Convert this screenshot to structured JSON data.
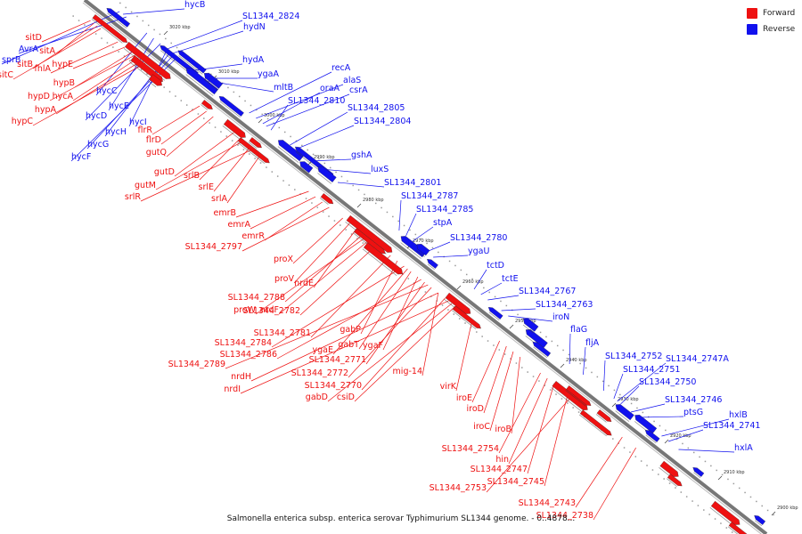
{
  "colors": {
    "forward": "#ee1111",
    "reverse": "#1111ee",
    "backbone": "#777777"
  },
  "legend": [
    {
      "label": "Forward",
      "color": "#ee1111"
    },
    {
      "label": "Reverse",
      "color": "#1111ee"
    }
  ],
  "caption": "Salmonella enterica subsp. enterica serovar Typhimurium SL1344 genome. - 0..4878...",
  "axis": {
    "unit": "kbp",
    "ticks": [
      "3020 kbp",
      "3010 kbp",
      "3000 kbp",
      "2990 kbp",
      "2980 kbp",
      "2970 kbp",
      "2960 kbp",
      "2950 kbp",
      "2940 kbp",
      "2930 kbp",
      "2920 kbp",
      "2910 kbp",
      "2900 kbp"
    ]
  },
  "genes": {
    "reverse": [
      "hycB",
      "SL1344_2824",
      "hydN",
      "hydA",
      "ygaA",
      "mltB",
      "recA",
      "alaS",
      "oraA",
      "csrA",
      "SL1344_2810",
      "SL1344_2805",
      "SL1344_2804",
      "gshA",
      "luxS",
      "SL1344_2801",
      "SL1344_2787",
      "SL1344_2785",
      "stpA",
      "SL1344_2780",
      "ygaU",
      "tctD",
      "tctE",
      "SL1344_2767",
      "SL1344_2763",
      "iroN",
      "flaG",
      "fljA",
      "SL1344_2752",
      "SL1344_2747A",
      "SL1344_2751",
      "SL1344_2750",
      "SL1344_2746",
      "ptsG",
      "hxlB",
      "SL1344_2741",
      "hxlA",
      "sprB",
      "AvrA",
      "hycC",
      "hycE",
      "hycD",
      "hycI",
      "hycH",
      "hycG",
      "hycF"
    ],
    "forward": [
      "sitD",
      "sitA",
      "sitB",
      "sitC",
      "fhlA",
      "hypE",
      "hypB",
      "hypD",
      "hycA",
      "hypA",
      "hypC",
      "flrR",
      "flrD",
      "gutQ",
      "gutD",
      "srlB",
      "gutM",
      "srlE",
      "srlR",
      "srlA",
      "emrB",
      "emrA",
      "emrR",
      "SL1344_2797",
      "proX",
      "proV",
      "nrdE",
      "SL1344_2788",
      "proW",
      "nrdF",
      "SL1344_2782",
      "SL1344_2781",
      "gabP",
      "SL1344_2784",
      "ygaE",
      "gabT",
      "ygaF",
      "SL1344_2786",
      "SL1344_2771",
      "SL1344_2789",
      "SL1344_2772",
      "mig-14",
      "nrdH",
      "SL1344_2770",
      "nrdI",
      "gabD",
      "csiD",
      "virK",
      "iroE",
      "iroD",
      "iroC",
      "iroB",
      "SL1344_2754",
      "hin",
      "SL1344_2747",
      "SL1344_2745",
      "SL1344_2753",
      "SL1344_2743",
      "SL1344_2738"
    ]
  }
}
